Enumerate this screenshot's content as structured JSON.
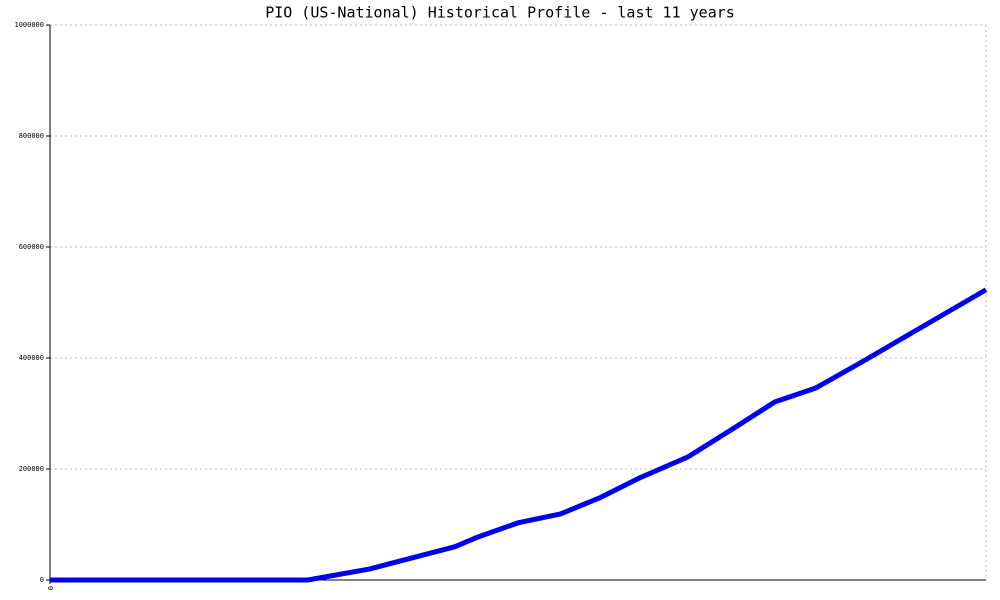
{
  "chart_data": {
    "type": "line",
    "title": "PIO (US-National) Historical Profile - last 11 years",
    "x": [
      0,
      3.03,
      3.76,
      4.76,
      5.03,
      5.5,
      6,
      6.46,
      6.93,
      7.5,
      8,
      8.52,
      9,
      9.52,
      11
    ],
    "series": [
      {
        "color": "#0000ee",
        "values": [
          0,
          0,
          20000,
          60000,
          77500,
          103000,
          119000,
          148000,
          184000,
          222000,
          270000,
          321000,
          346000,
          391000,
          523000
        ]
      }
    ],
    "xlim": [
      0,
      11
    ],
    "xticks": [
      0
    ],
    "ylim": [
      0,
      1000000
    ],
    "yticks": [
      0,
      200000,
      400000,
      600000,
      800000,
      1000000
    ],
    "grid": true
  }
}
